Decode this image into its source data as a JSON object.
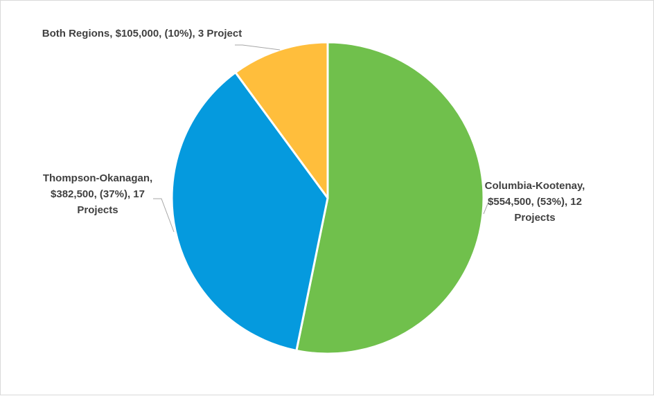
{
  "chart_data": {
    "type": "pie",
    "title": "",
    "slices": [
      {
        "name": "Columbia-Kootenay",
        "value": 554500,
        "percent": 53,
        "projects": 12,
        "color": "#70c04c",
        "label_lines": [
          "Columbia-Kootenay,",
          "$554,500, (53%), 12",
          "Projects"
        ]
      },
      {
        "name": "Thompson-Okanagan",
        "value": 382500,
        "percent": 37,
        "projects": 17,
        "color": "#059ade",
        "label_lines": [
          "Thompson-Okanagan,",
          "$382,500, (37%), 17",
          "Projects"
        ]
      },
      {
        "name": "Both Regions",
        "value": 105000,
        "percent": 10,
        "projects": 3,
        "color": "#ffbe3c",
        "label_lines": [
          "Both Regions, $105,000, (10%), 3 Project"
        ]
      }
    ],
    "start_angle_deg": 0,
    "direction": "clockwise",
    "slice_border_color": "#ffffff",
    "leader_line_color": "#a6a6a6",
    "legend": "none"
  }
}
